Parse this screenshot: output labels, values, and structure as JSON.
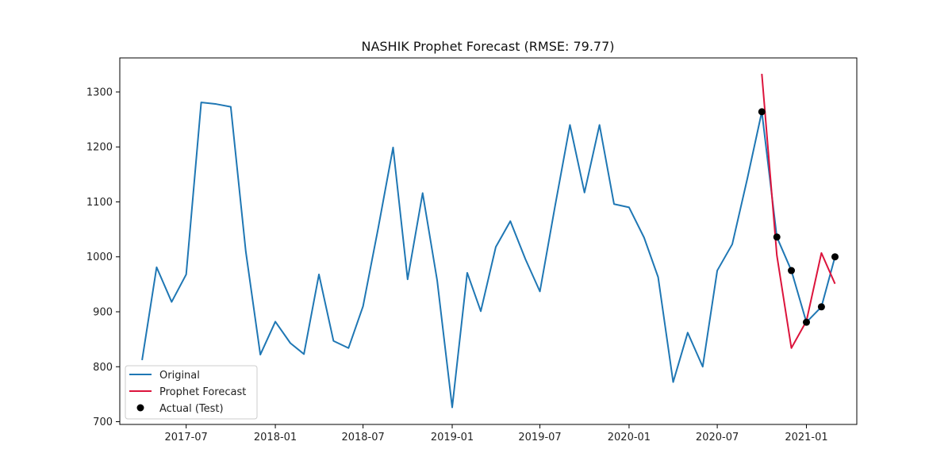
{
  "chart_data": {
    "type": "line",
    "title": "NASHIK Prophet Forecast (RMSE: 79.77)",
    "xlabel": "",
    "ylabel": "",
    "xlim": [
      "2017-02-14",
      "2021-04-15"
    ],
    "ylim": [
      695,
      1362
    ],
    "x_ticks": [
      "2017-07-01",
      "2018-01-01",
      "2018-07-01",
      "2019-01-01",
      "2019-07-01",
      "2020-01-01",
      "2020-07-01",
      "2021-01-01"
    ],
    "x_tick_labels": [
      "2017-07",
      "2018-01",
      "2018-07",
      "2019-01",
      "2019-07",
      "2020-01",
      "2020-07",
      "2021-01"
    ],
    "y_ticks": [
      700,
      800,
      900,
      1000,
      1100,
      1200,
      1300
    ],
    "y_tick_labels": [
      "700",
      "800",
      "900",
      "1000",
      "1100",
      "1200",
      "1300"
    ],
    "grid": false,
    "legend": {
      "placement": "lower-left",
      "entries": [
        "Original",
        "Prophet Forecast",
        "Actual (Test)"
      ]
    },
    "series": [
      {
        "name": "Original",
        "kind": "line",
        "color": "#1f77b4",
        "x": [
          "2017-04-01",
          "2017-05-01",
          "2017-06-01",
          "2017-07-01",
          "2017-08-01",
          "2017-09-01",
          "2017-10-01",
          "2017-11-01",
          "2017-12-01",
          "2018-01-01",
          "2018-02-01",
          "2018-03-01",
          "2018-04-01",
          "2018-05-01",
          "2018-06-01",
          "2018-07-01",
          "2018-08-01",
          "2018-09-01",
          "2018-10-01",
          "2018-11-01",
          "2018-12-01",
          "2019-01-01",
          "2019-02-01",
          "2019-03-01",
          "2019-04-01",
          "2019-05-01",
          "2019-06-01",
          "2019-07-01",
          "2019-08-01",
          "2019-09-01",
          "2019-10-01",
          "2019-11-01",
          "2019-12-01",
          "2020-01-01",
          "2020-02-01",
          "2020-03-01",
          "2020-04-01",
          "2020-05-01",
          "2020-06-01",
          "2020-07-01",
          "2020-08-01",
          "2020-09-01",
          "2020-10-01",
          "2020-11-01",
          "2020-12-01",
          "2021-01-01",
          "2021-02-01",
          "2021-03-01"
        ],
        "y": [
          812,
          981,
          918,
          968,
          1281,
          1278,
          1273,
          1010,
          822,
          882,
          843,
          823,
          968,
          847,
          834,
          910,
          1051,
          1199,
          959,
          1116,
          957,
          726,
          971,
          901,
          1018,
          1065,
          996,
          937,
          1091,
          1240,
          1117,
          1240,
          1096,
          1090,
          1035,
          963,
          772,
          862,
          800,
          975,
          1023,
          1142,
          1264,
          1036,
          975,
          881,
          909,
          1000
        ]
      },
      {
        "name": "Prophet Forecast",
        "kind": "line",
        "color": "#dc143c",
        "x": [
          "2020-10-01",
          "2020-11-01",
          "2020-12-01",
          "2021-01-01",
          "2021-02-01",
          "2021-03-01"
        ],
        "y": [
          1333,
          1003,
          834,
          883,
          1007,
          951
        ]
      },
      {
        "name": "Actual (Test)",
        "kind": "scatter",
        "color": "#000000",
        "x": [
          "2020-10-01",
          "2020-11-01",
          "2020-12-01",
          "2021-01-01",
          "2021-02-01",
          "2021-03-01"
        ],
        "y": [
          1264,
          1036,
          975,
          881,
          909,
          1000
        ]
      }
    ]
  }
}
